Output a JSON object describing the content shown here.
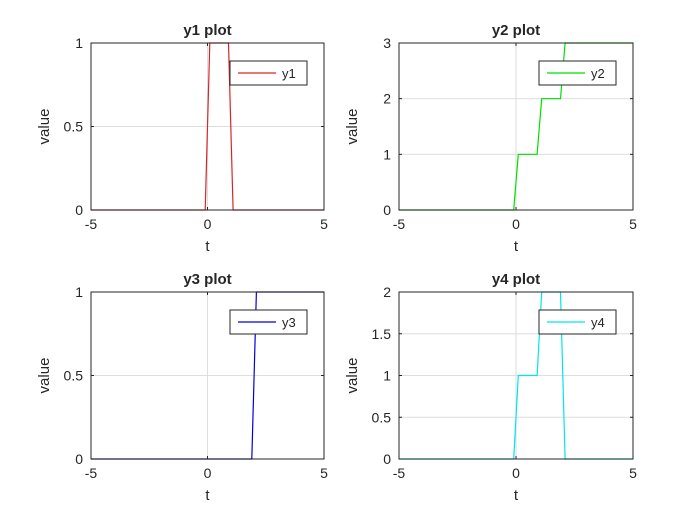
{
  "chart_data": [
    {
      "type": "line",
      "title": "y1 plot",
      "xlabel": "t",
      "ylabel": "value",
      "xlim": [
        -5,
        5
      ],
      "ylim": [
        0,
        1
      ],
      "xticks": [
        "-5",
        "0",
        "5"
      ],
      "yticks": [
        "0",
        "0.5",
        "1"
      ],
      "grid": true,
      "legend": "top-right",
      "series": [
        {
          "name": "y1",
          "color": "#d62728",
          "x": [
            -5,
            -0.1,
            0.1,
            0.9,
            1.1,
            5
          ],
          "y": [
            0,
            0,
            1,
            1,
            0,
            0
          ]
        }
      ]
    },
    {
      "type": "line",
      "title": "y2 plot",
      "xlabel": "t",
      "ylabel": "value",
      "xlim": [
        -5,
        5
      ],
      "ylim": [
        0,
        3
      ],
      "xticks": [
        "-5",
        "0",
        "5"
      ],
      "yticks": [
        "0",
        "1",
        "2",
        "3"
      ],
      "grid": true,
      "legend": "top-right",
      "series": [
        {
          "name": "y2",
          "color": "#00e000",
          "x": [
            -5,
            -0.1,
            0.1,
            0.9,
            1.1,
            1.9,
            2.1,
            5
          ],
          "y": [
            0,
            0,
            1,
            1,
            2,
            2,
            3,
            3
          ]
        }
      ]
    },
    {
      "type": "line",
      "title": "y3 plot",
      "xlabel": "t",
      "ylabel": "value",
      "xlim": [
        -5,
        5
      ],
      "ylim": [
        0,
        1
      ],
      "xticks": [
        "-5",
        "0",
        "5"
      ],
      "yticks": [
        "0",
        "0.5",
        "1"
      ],
      "grid": true,
      "legend": "top-right",
      "series": [
        {
          "name": "y3",
          "color": "#0000e0",
          "x": [
            -5,
            1.9,
            2.1,
            5
          ],
          "y": [
            0,
            0,
            1,
            1
          ]
        }
      ]
    },
    {
      "type": "line",
      "title": "y4 plot",
      "xlabel": "t",
      "ylabel": "value",
      "xlim": [
        -5,
        5
      ],
      "ylim": [
        0,
        2
      ],
      "xticks": [
        "-5",
        "0",
        "5"
      ],
      "yticks": [
        "0",
        "0.5",
        "1",
        "1.5",
        "2"
      ],
      "grid": true,
      "legend": "top-right",
      "series": [
        {
          "name": "y4",
          "color": "#00e6e6",
          "x": [
            -5,
            -0.1,
            0.1,
            0.9,
            1.1,
            1.9,
            2.1,
            5
          ],
          "y": [
            0,
            0,
            1,
            1,
            2,
            2,
            0,
            0
          ]
        }
      ]
    }
  ]
}
